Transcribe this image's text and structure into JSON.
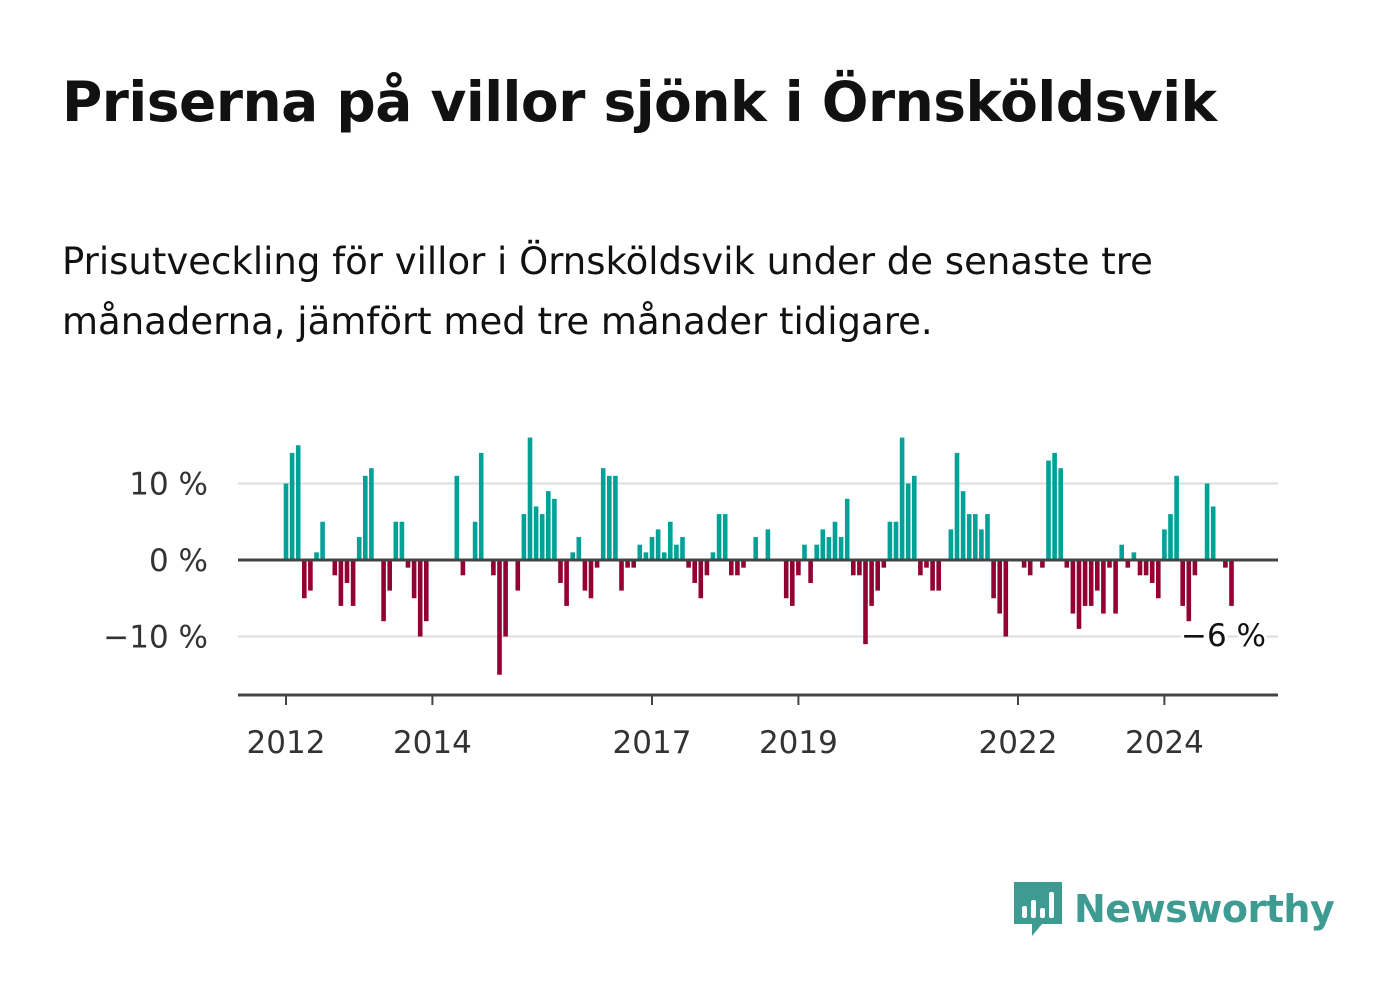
{
  "title": "Priserna på villor sjönk i Örnsköldsvik",
  "subtitle": "Prisutveckling för villor i Örnsköldsvik under de senaste tre månaderna, jämfört med tre månader tidigare.",
  "brand": "Newsworthy",
  "colors": {
    "positive": "#00a197",
    "negative": "#930033",
    "brand": "#3d9b92",
    "grid": "#dddddd",
    "axis": "#444444"
  },
  "chart_data": {
    "type": "bar",
    "ylim": [
      -18,
      17
    ],
    "y_ticks": [
      10,
      0,
      -10
    ],
    "y_tick_labels": [
      "10 %",
      "0 %",
      "−10 %"
    ],
    "x_ticks": [
      {
        "label": "2012",
        "month_index": 0
      },
      {
        "label": "2014",
        "month_index": 24
      },
      {
        "label": "2017",
        "month_index": 60
      },
      {
        "label": "2019",
        "month_index": 84
      },
      {
        "label": "2022",
        "month_index": 120
      },
      {
        "label": "2024",
        "month_index": 144
      }
    ],
    "last_value_label": "−6 %",
    "values": [
      10,
      14,
      15,
      -5,
      -4,
      1,
      5,
      0,
      -2,
      -6,
      -3,
      -6,
      3,
      11,
      12,
      0,
      -8,
      -4,
      5,
      5,
      -1,
      -5,
      -10,
      -8,
      0,
      0,
      0,
      0,
      11,
      -2,
      0,
      5,
      14,
      0,
      -2,
      -15,
      -10,
      0,
      -4,
      6,
      16,
      7,
      6,
      9,
      8,
      -3,
      -6,
      1,
      3,
      -4,
      -5,
      -1,
      12,
      11,
      11,
      -4,
      -1,
      -1,
      2,
      1,
      3,
      4,
      1,
      5,
      2,
      3,
      -1,
      -3,
      -5,
      -2,
      1,
      6,
      6,
      -2,
      -2,
      -1,
      0,
      3,
      0,
      4,
      0,
      0,
      -5,
      -6,
      -2,
      2,
      -3,
      2,
      4,
      3,
      5,
      3,
      8,
      -2,
      -2,
      -11,
      -6,
      -4,
      -1,
      5,
      5,
      16,
      10,
      11,
      -2,
      -1,
      -4,
      -4,
      0,
      4,
      14,
      9,
      6,
      6,
      4,
      6,
      -5,
      -7,
      -10,
      0,
      0,
      -1,
      -2,
      0,
      -1,
      13,
      14,
      12,
      -1,
      -7,
      -9,
      -6,
      -6,
      -4,
      -7,
      -1,
      -7,
      2,
      -1,
      1,
      -2,
      -2,
      -3,
      -5,
      4,
      6,
      11,
      -6,
      -8,
      -2,
      0,
      10,
      7,
      0,
      -1,
      -6
    ]
  }
}
